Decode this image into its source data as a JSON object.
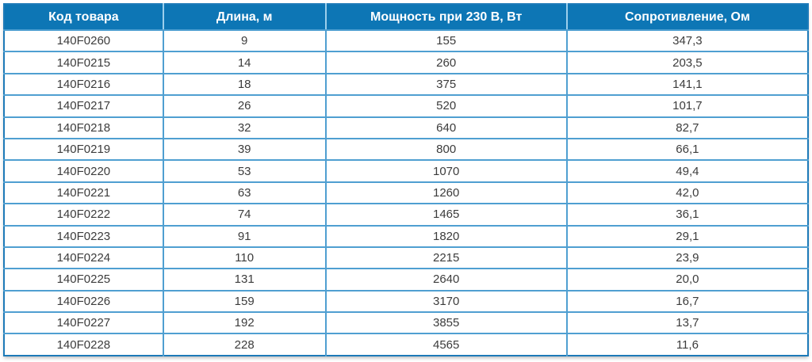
{
  "table": {
    "columns": [
      "Код товара",
      "Длина, м",
      "Мощность при 230 В, Вт",
      "Сопротивление, Ом"
    ],
    "rows": [
      [
        "140F0260",
        "9",
        "155",
        "347,3"
      ],
      [
        "140F0215",
        "14",
        "260",
        "203,5"
      ],
      [
        "140F0216",
        "18",
        "375",
        "141,1"
      ],
      [
        "140F0217",
        "26",
        "520",
        "101,7"
      ],
      [
        "140F0218",
        "32",
        "640",
        "82,7"
      ],
      [
        "140F0219",
        "39",
        "800",
        "66,1"
      ],
      [
        "140F0220",
        "53",
        "1070",
        "49,4"
      ],
      [
        "140F0221",
        "63",
        "1260",
        "42,0"
      ],
      [
        "140F0222",
        "74",
        "1465",
        "36,1"
      ],
      [
        "140F0223",
        "91",
        "1820",
        "29,1"
      ],
      [
        "140F0224",
        "110",
        "2215",
        "23,9"
      ],
      [
        "140F0225",
        "131",
        "2640",
        "20,0"
      ],
      [
        "140F0226",
        "159",
        "3170",
        "16,7"
      ],
      [
        "140F0227",
        "192",
        "3855",
        "13,7"
      ],
      [
        "140F0228",
        "228",
        "4565",
        "11,6"
      ]
    ]
  },
  "colors": {
    "header_bg": "#0d76b5",
    "header_text": "#ffffff",
    "header_divider": "#9ccfec",
    "grid_line": "#4f9fd1",
    "outer_border": "#1d7ab8",
    "body_text": "#3c3c3c",
    "row_bg": "#ffffff"
  },
  "chart_data": {
    "type": "table",
    "title": "",
    "columns": [
      "Код товара",
      "Длина, м",
      "Мощность при 230 В, Вт",
      "Сопротивление, Ом"
    ],
    "product_codes": [
      "140F0260",
      "140F0215",
      "140F0216",
      "140F0217",
      "140F0218",
      "140F0219",
      "140F0220",
      "140F0221",
      "140F0222",
      "140F0223",
      "140F0224",
      "140F0225",
      "140F0226",
      "140F0227",
      "140F0228"
    ],
    "length_m": [
      9,
      14,
      18,
      26,
      32,
      39,
      53,
      63,
      74,
      91,
      110,
      131,
      159,
      192,
      228
    ],
    "power_w_at_230v": [
      155,
      260,
      375,
      520,
      640,
      800,
      1070,
      1260,
      1465,
      1820,
      2215,
      2640,
      3170,
      3855,
      4565
    ],
    "resistance_ohm": [
      347.3,
      203.5,
      141.1,
      101.7,
      82.7,
      66.1,
      49.4,
      42.0,
      36.1,
      29.1,
      23.9,
      20.0,
      16.7,
      13.7,
      11.6
    ]
  }
}
